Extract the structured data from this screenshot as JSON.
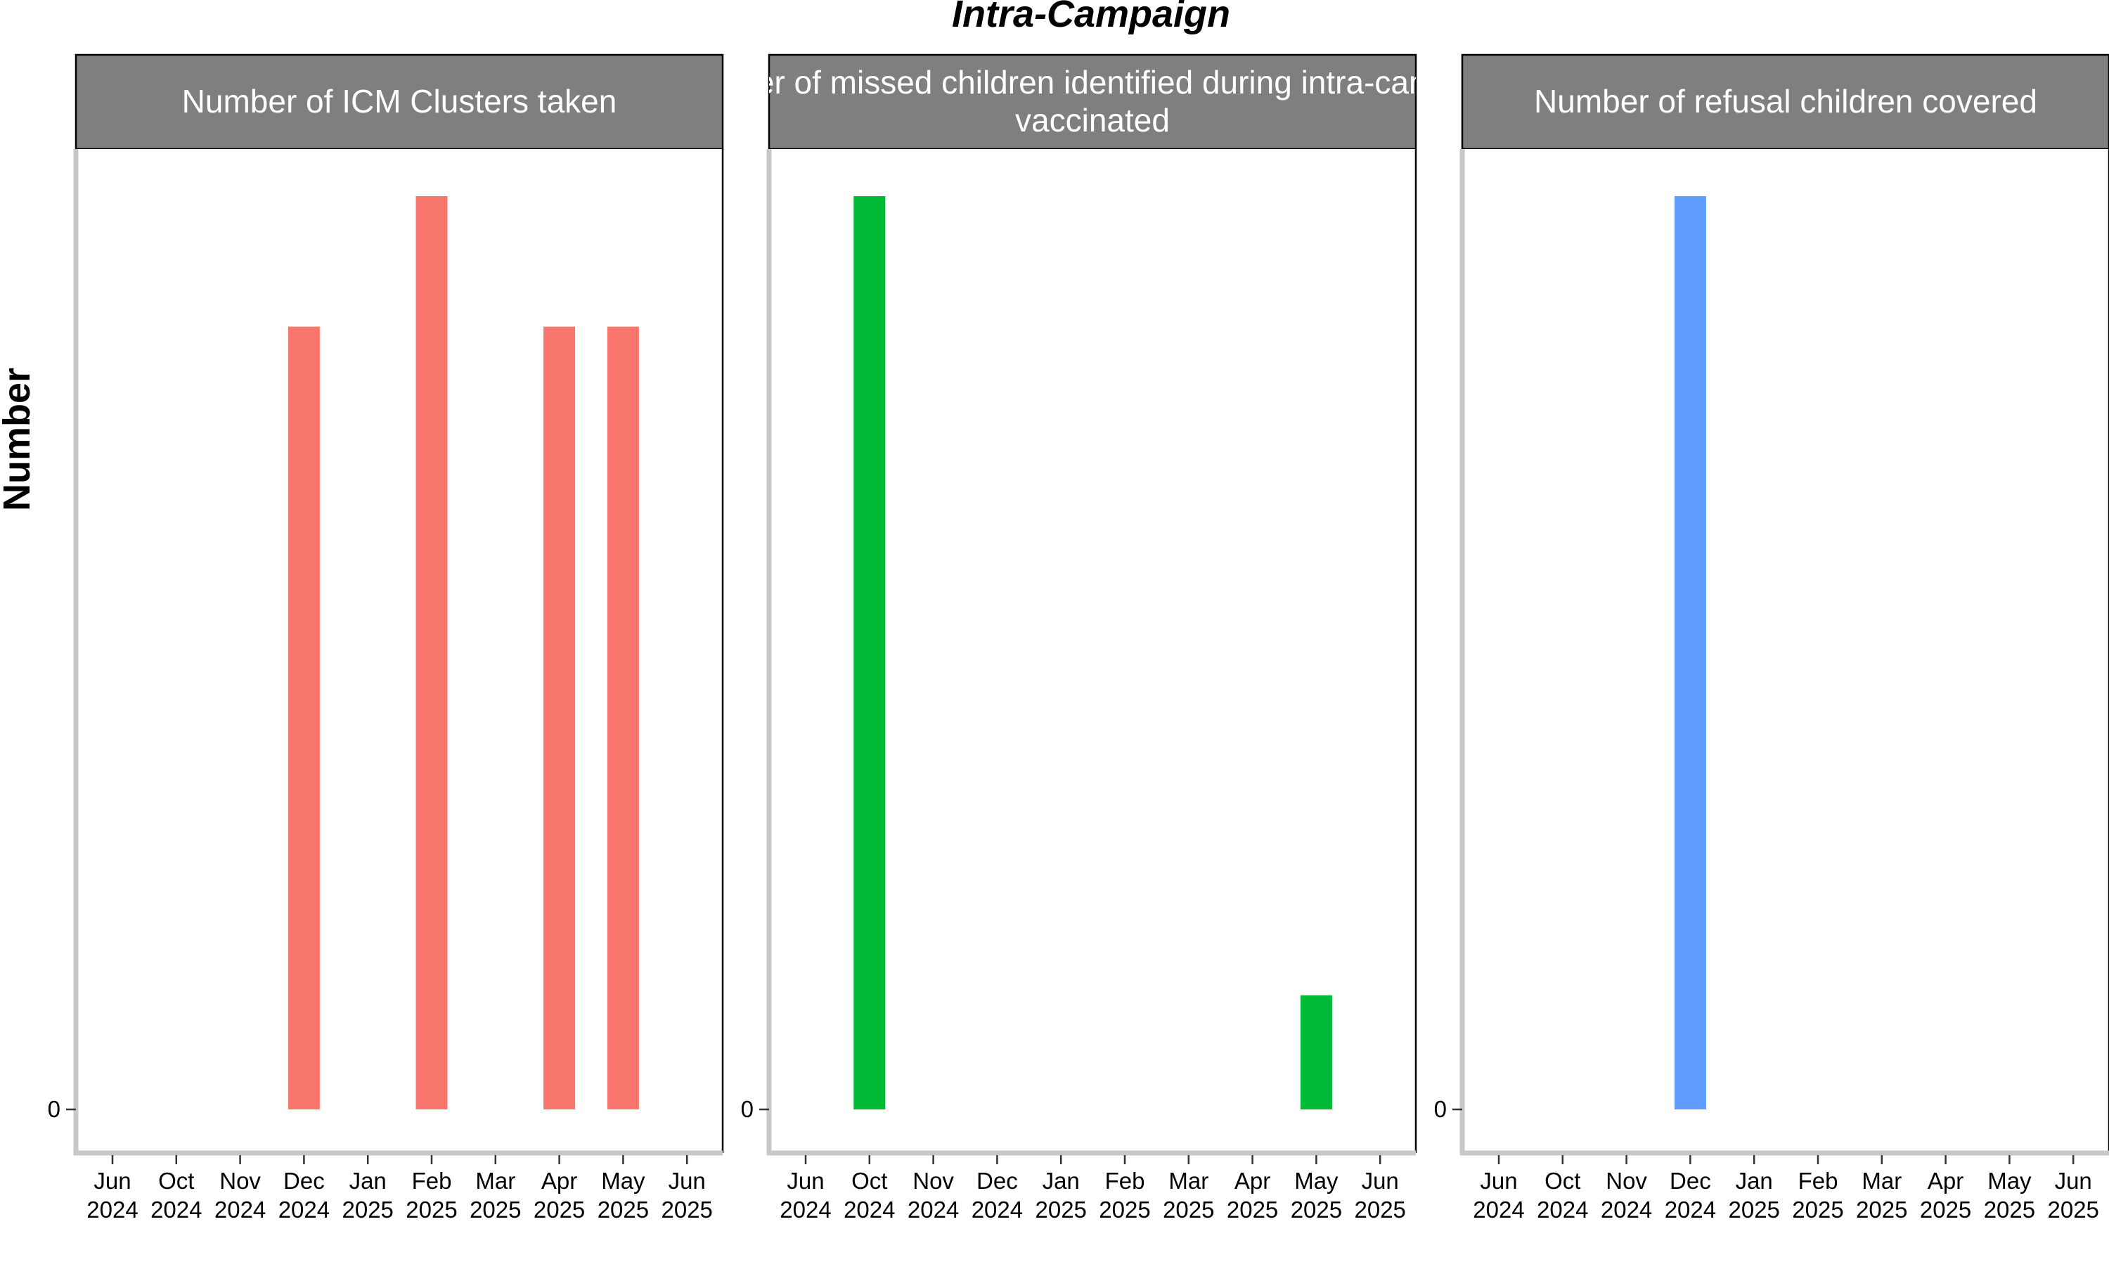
{
  "chart_data": {
    "type": "bar",
    "title": "Intra-Campaign",
    "ylabel": "Number",
    "y_tick_labels": [
      "0"
    ],
    "x_tick_labels": [
      [
        "Jun",
        "2024"
      ],
      [
        "Oct",
        "2024"
      ],
      [
        "Nov",
        "2024"
      ],
      [
        "Dec",
        "2024"
      ],
      [
        "Jan",
        "2025"
      ],
      [
        "Feb",
        "2025"
      ],
      [
        "Mar",
        "2025"
      ],
      [
        "Apr",
        "2025"
      ],
      [
        "May",
        "2025"
      ],
      [
        "Jun",
        "2025"
      ]
    ],
    "grid": false,
    "panels": [
      {
        "strip_lines": [
          "Number of ICM Clusters taken"
        ],
        "color": "#F8766D",
        "categories": [
          "Dec 2024",
          "Feb 2025",
          "Apr 2025",
          "May 2025"
        ],
        "values": [
          6,
          7,
          6,
          6
        ],
        "ylim": [
          0,
          7
        ]
      },
      {
        "strip_lines": [
          "Number of missed children identified during intra-campaign",
          "vaccinated"
        ],
        "color": "#00BA38",
        "categories": [
          "Oct 2024",
          "May 2025"
        ],
        "values": [
          8,
          1
        ],
        "ylim": [
          0,
          8
        ]
      },
      {
        "strip_lines": [
          "Number of refusal children covered"
        ],
        "color": "#619CFF",
        "categories": [
          "Dec 2024"
        ],
        "values": [
          1
        ],
        "ylim": [
          0,
          1
        ]
      }
    ]
  }
}
